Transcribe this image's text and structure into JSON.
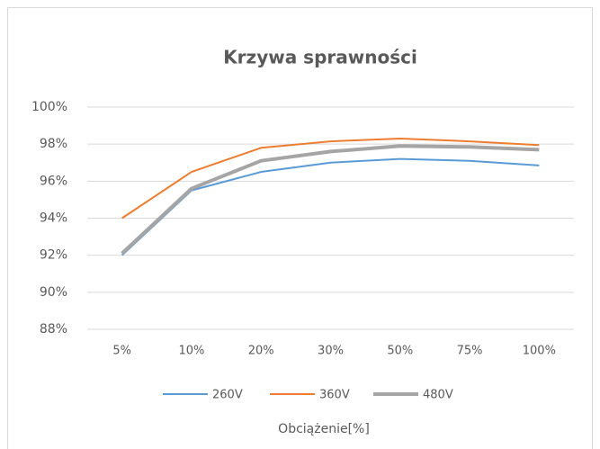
{
  "chart_data": {
    "type": "line",
    "title": "Krzywa sprawności",
    "x_label": "Obciążenie[%]",
    "categories": [
      "5%",
      "10%",
      "20%",
      "30%",
      "50%",
      "75%",
      "100%"
    ],
    "series": [
      {
        "name": "260V",
        "color": "#5b9bd5",
        "values": [
          92.0,
          95.5,
          96.5,
          97.0,
          97.2,
          97.1,
          96.85
        ]
      },
      {
        "name": "360V",
        "color": "#ed7d31",
        "values": [
          94.0,
          96.5,
          97.8,
          98.15,
          98.3,
          98.15,
          97.95
        ]
      },
      {
        "name": "480V",
        "color": "#a5a5a5",
        "values": [
          92.1,
          95.6,
          97.1,
          97.6,
          97.9,
          97.85,
          97.7
        ]
      }
    ],
    "ylim": [
      88,
      100
    ],
    "yticks": [
      {
        "value": 88,
        "label": "88%"
      },
      {
        "value": 90,
        "label": "90%"
      },
      {
        "value": 92,
        "label": "92%"
      },
      {
        "value": 94,
        "label": "94%"
      },
      {
        "value": 96,
        "label": "96%"
      },
      {
        "value": 98,
        "label": "98%"
      },
      {
        "value": 100,
        "label": "100%"
      }
    ],
    "grid": true,
    "legend": "bottom"
  }
}
